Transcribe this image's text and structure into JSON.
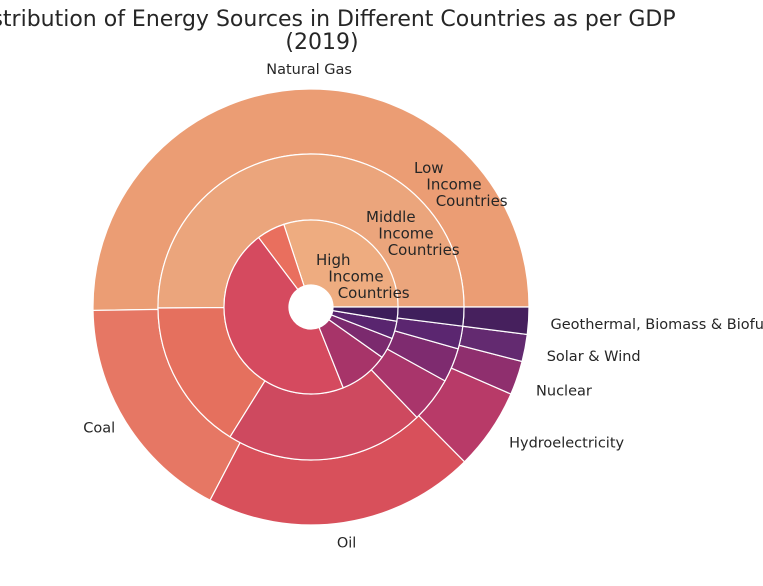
{
  "chart_data": {
    "type": "pie",
    "subtype": "nested-donut",
    "title_lines": [
      "Distribution of Energy Sources in Different Countries as per GDP",
      "(2019)"
    ],
    "categories": [
      "Natural Gas",
      "Coal",
      "Oil",
      "Hydroelectricity",
      "Nuclear",
      "Solar & Wind",
      "Geothermal, Biomass & Biofuels"
    ],
    "series": [
      {
        "name": "Low\n    Income\n       Countries",
        "values": [
          50,
          17,
          20,
          6,
          2.5,
          2,
          2
        ]
      },
      {
        "name": "Middle\n    Income\n       Countries",
        "values": [
          50,
          16,
          21,
          4.8,
          3.6,
          2.4,
          2
        ]
      },
      {
        "name": "High\n    Income\n       Countries",
        "values": [
          23,
          4,
          35,
          7,
          3,
          2.5,
          2
        ]
      }
    ],
    "ring_colors": {
      "Low": [
        "#eb9d74",
        "#e67764",
        "#d8505b",
        "#b83a68",
        "#8f2f6e",
        "#632a70",
        "#46205d"
      ],
      "Middle": [
        "#eba57c",
        "#e5705e",
        "#ce495f",
        "#a9356b",
        "#7e2b6f",
        "#5b2670",
        "#3f1f5c"
      ],
      "High": [
        "#eeac80",
        "#e96f5e",
        "#d54a5f",
        "#a73469",
        "#7b2a6e",
        "#59256f",
        "#3d1d5a"
      ]
    },
    "start_angle_deg": 0,
    "direction": "counterclockwise"
  }
}
